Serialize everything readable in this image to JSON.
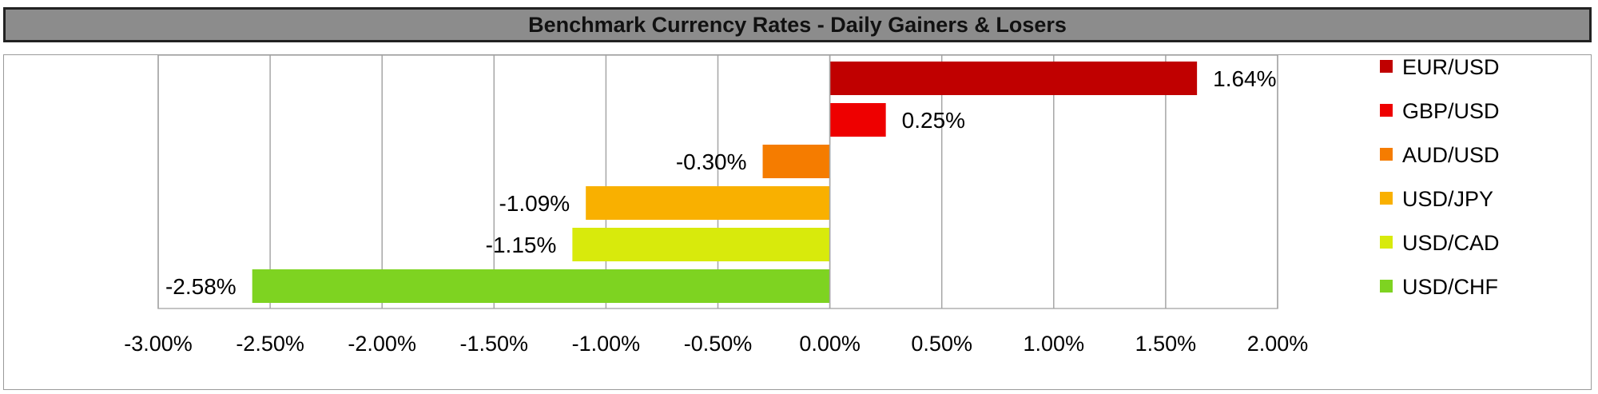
{
  "chart_data": {
    "type": "bar",
    "orientation": "horizontal",
    "title": "Benchmark Currency Rates - Daily Gainers & Losers",
    "categories": [
      "EUR/USD",
      "GBP/USD",
      "AUD/USD",
      "USD/JPY",
      "USD/CAD",
      "USD/CHF"
    ],
    "values": [
      1.64,
      0.25,
      -0.3,
      -1.09,
      -1.15,
      -2.58
    ],
    "value_labels": [
      "1.64%",
      "0.25%",
      "-0.30%",
      "-1.09%",
      "-1.15%",
      "-2.58%"
    ],
    "colors": [
      "#c00000",
      "#ee0000",
      "#f57c00",
      "#f9b000",
      "#d8ea0c",
      "#7ed321"
    ],
    "xlim": [
      -3.0,
      2.0
    ],
    "x_ticks": [
      -3.0,
      -2.5,
      -2.0,
      -1.5,
      -1.0,
      -0.5,
      0.0,
      0.5,
      1.0,
      1.5,
      2.0
    ],
    "x_tick_labels": [
      "-3.00%",
      "-2.50%",
      "-2.00%",
      "-1.50%",
      "-1.00%",
      "-0.50%",
      "0.00%",
      "0.50%",
      "1.00%",
      "1.50%",
      "2.00%"
    ],
    "grid": "vertical",
    "legend_position": "right",
    "xlabel": "",
    "ylabel": ""
  }
}
